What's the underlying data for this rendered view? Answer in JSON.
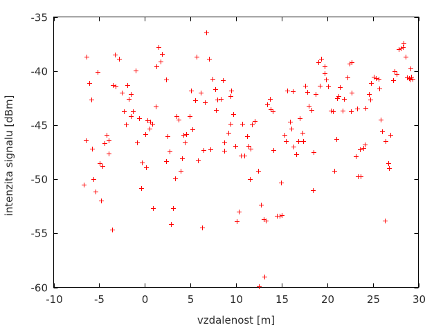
{
  "chart_data": {
    "type": "scatter",
    "title": "",
    "xlabel": "vzdalenost [m]",
    "ylabel": "intenzita signalu [dBm]",
    "xlim": [
      -10,
      30
    ],
    "ylim": [
      -60,
      -35
    ],
    "x_ticks": [
      -10,
      -5,
      0,
      5,
      10,
      15,
      20,
      25,
      30
    ],
    "y_ticks": [
      -35,
      -40,
      -45,
      -50,
      -55,
      -60
    ],
    "grid": false,
    "legend": "none",
    "marker": {
      "symbol": "plus",
      "color": "#ff0000",
      "size": 7
    },
    "axis_color": "#000000",
    "text_color": "#2b2b2b",
    "points": [
      [
        -6.4,
        -38.7
      ],
      [
        -3.25,
        -38.5
      ],
      [
        -2.85,
        -38.9
      ],
      [
        -5.15,
        -40.1
      ],
      [
        -1.0,
        -39.95
      ],
      [
        -6.1,
        -41.1
      ],
      [
        -3.5,
        -41.3
      ],
      [
        -3.2,
        -41.45
      ],
      [
        -1.9,
        -41.3
      ],
      [
        -2.5,
        -42.0
      ],
      [
        -1.5,
        -42.1
      ],
      [
        -1.8,
        -42.55
      ],
      [
        -5.9,
        -42.65
      ],
      [
        -2.3,
        -43.75
      ],
      [
        -1.3,
        -43.7
      ],
      [
        -1.5,
        -44.2
      ],
      [
        -0.6,
        -44.35
      ],
      [
        -2.1,
        -44.95
      ],
      [
        -4.2,
        -45.9
      ],
      [
        -3.95,
        -46.4
      ],
      [
        -4.4,
        -46.7
      ],
      [
        -6.5,
        -46.4
      ],
      [
        -0.85,
        -46.6
      ],
      [
        -5.75,
        -47.15
      ],
      [
        -4.0,
        -47.6
      ],
      [
        -4.95,
        -48.5
      ],
      [
        -4.65,
        -48.8
      ],
      [
        -0.3,
        -48.45
      ],
      [
        -5.6,
        -50.0
      ],
      [
        -6.7,
        -50.5
      ],
      [
        -0.4,
        -50.8
      ],
      [
        -5.4,
        -51.15
      ],
      [
        -4.8,
        -51.95
      ],
      [
        -3.6,
        -54.65
      ],
      [
        1.5,
        -37.8
      ],
      [
        1.9,
        -38.4
      ],
      [
        1.7,
        -39.1
      ],
      [
        1.3,
        -39.6
      ],
      [
        2.3,
        -40.8
      ],
      [
        1.2,
        -43.3
      ],
      [
        0.3,
        -44.55
      ],
      [
        0.6,
        -44.7
      ],
      [
        0.85,
        -44.9
      ],
      [
        0.55,
        -45.3
      ],
      [
        0.05,
        -45.85
      ],
      [
        2.5,
        -46.0
      ],
      [
        2.75,
        -47.45
      ],
      [
        0.1,
        -48.9
      ],
      [
        2.3,
        -48.3
      ],
      [
        4.05,
        -48.05
      ],
      [
        3.9,
        -49.25
      ],
      [
        3.3,
        -49.9
      ],
      [
        0.9,
        -52.7
      ],
      [
        3.1,
        -52.7
      ],
      [
        2.9,
        -54.15
      ],
      [
        3.5,
        -44.15
      ],
      [
        3.7,
        -44.5
      ],
      [
        4.9,
        -44.15
      ],
      [
        4.2,
        -45.9
      ],
      [
        4.5,
        -45.85
      ],
      [
        4.4,
        -46.6
      ],
      [
        6.75,
        -36.45
      ],
      [
        5.7,
        -38.7
      ],
      [
        7.05,
        -38.9
      ],
      [
        7.4,
        -40.7
      ],
      [
        8.55,
        -40.85
      ],
      [
        5.1,
        -41.8
      ],
      [
        6.1,
        -42.0
      ],
      [
        5.5,
        -42.7
      ],
      [
        6.6,
        -42.9
      ],
      [
        7.7,
        -41.7
      ],
      [
        7.95,
        -42.65
      ],
      [
        8.3,
        -42.55
      ],
      [
        9.5,
        -41.8
      ],
      [
        9.4,
        -42.3
      ],
      [
        7.8,
        -43.6
      ],
      [
        9.7,
        -44.0
      ],
      [
        9.4,
        -44.9
      ],
      [
        9.2,
        -45.7
      ],
      [
        5.2,
        -45.4
      ],
      [
        5.8,
        -48.25
      ],
      [
        6.4,
        -47.3
      ],
      [
        7.2,
        -47.25
      ],
      [
        8.7,
        -46.6
      ],
      [
        8.7,
        -47.4
      ],
      [
        9.9,
        -46.95
      ],
      [
        6.25,
        -54.5
      ],
      [
        10.7,
        -44.85
      ],
      [
        11.75,
        -44.95
      ],
      [
        12.05,
        -44.65
      ],
      [
        11.25,
        -46.0
      ],
      [
        11.4,
        -46.9
      ],
      [
        11.6,
        -47.15
      ],
      [
        10.5,
        -47.85
      ],
      [
        10.9,
        -47.8
      ],
      [
        12.4,
        -49.2
      ],
      [
        11.5,
        -50.0
      ],
      [
        10.3,
        -53.0
      ],
      [
        10.1,
        -53.9
      ],
      [
        12.7,
        -52.35
      ],
      [
        13.0,
        -53.7
      ],
      [
        13.3,
        -53.8
      ],
      [
        14.45,
        -53.4
      ],
      [
        14.75,
        -53.4
      ],
      [
        15.0,
        -53.3
      ],
      [
        13.1,
        -59.0
      ],
      [
        12.5,
        -59.9
      ],
      [
        13.7,
        -42.6
      ],
      [
        13.4,
        -43.1
      ],
      [
        13.8,
        -43.55
      ],
      [
        14.0,
        -43.7
      ],
      [
        14.1,
        -47.3
      ],
      [
        14.9,
        -50.3
      ],
      [
        15.65,
        -41.8
      ],
      [
        16.2,
        -41.9
      ],
      [
        15.3,
        -45.9
      ],
      [
        15.5,
        -46.5
      ],
      [
        15.95,
        -44.7
      ],
      [
        16.1,
        -45.3
      ],
      [
        16.3,
        -47.0
      ],
      [
        16.6,
        -47.7
      ],
      [
        16.8,
        -46.5
      ],
      [
        17.4,
        -46.5
      ],
      [
        17.0,
        -44.35
      ],
      [
        17.3,
        -45.7
      ],
      [
        17.6,
        -41.35
      ],
      [
        17.85,
        -41.95
      ],
      [
        18.0,
        -43.2
      ],
      [
        18.3,
        -43.6
      ],
      [
        18.5,
        -47.5
      ],
      [
        18.4,
        -51.0
      ],
      [
        18.7,
        -42.15
      ],
      [
        19.0,
        -39.2
      ],
      [
        19.3,
        -38.9
      ],
      [
        19.7,
        -39.6
      ],
      [
        19.7,
        -40.2
      ],
      [
        19.9,
        -40.8
      ],
      [
        19.15,
        -41.35
      ],
      [
        20.1,
        -41.4
      ],
      [
        20.4,
        -43.65
      ],
      [
        20.65,
        -43.7
      ],
      [
        21.7,
        -43.65
      ],
      [
        22.6,
        -43.7
      ],
      [
        23.25,
        -43.5
      ],
      [
        21.4,
        -41.5
      ],
      [
        21.2,
        -42.3
      ],
      [
        21.1,
        -42.5
      ],
      [
        21.85,
        -42.6
      ],
      [
        22.7,
        -42.0
      ],
      [
        22.45,
        -39.3
      ],
      [
        22.7,
        -39.2
      ],
      [
        22.2,
        -40.6
      ],
      [
        21.0,
        -46.3
      ],
      [
        20.8,
        -49.2
      ],
      [
        23.35,
        -49.75
      ],
      [
        23.65,
        -49.75
      ],
      [
        23.15,
        -47.9
      ],
      [
        23.6,
        -47.25
      ],
      [
        23.95,
        -47.1
      ],
      [
        24.15,
        -46.8
      ],
      [
        24.2,
        -43.4
      ],
      [
        24.55,
        -42.15
      ],
      [
        24.7,
        -42.65
      ],
      [
        24.8,
        -41.1
      ],
      [
        25.1,
        -40.5
      ],
      [
        25.35,
        -40.65
      ],
      [
        25.6,
        -40.75
      ],
      [
        25.7,
        -41.6
      ],
      [
        25.9,
        -44.5
      ],
      [
        26.0,
        -45.6
      ],
      [
        26.9,
        -45.9
      ],
      [
        26.4,
        -46.5
      ],
      [
        26.7,
        -48.5
      ],
      [
        26.8,
        -49.0
      ],
      [
        26.3,
        -53.8
      ],
      [
        27.2,
        -40.85
      ],
      [
        27.4,
        -40.05
      ],
      [
        27.6,
        -40.3
      ],
      [
        27.8,
        -38.0
      ],
      [
        28.05,
        -37.9
      ],
      [
        28.3,
        -37.8
      ],
      [
        28.4,
        -37.4
      ],
      [
        28.6,
        -38.7
      ],
      [
        29.1,
        -39.75
      ],
      [
        28.75,
        -40.6
      ],
      [
        29.0,
        -40.65
      ],
      [
        29.2,
        -40.5
      ],
      [
        29.05,
        -40.8
      ],
      [
        29.35,
        -40.75
      ]
    ]
  }
}
